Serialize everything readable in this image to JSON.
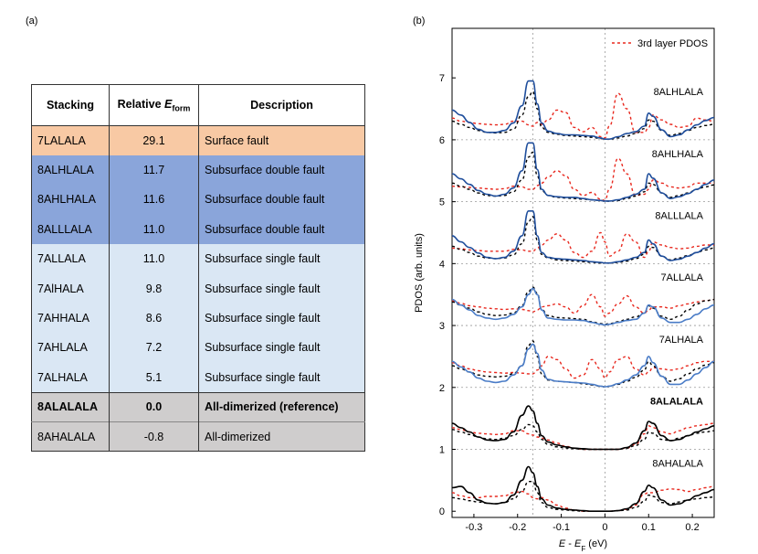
{
  "panel_a_label": "(a)",
  "panel_b_label": "(b)",
  "table": {
    "headers": {
      "stacking": "Stacking",
      "relative_prefix": "Relative ",
      "relative_italic": "E",
      "relative_sub": "form",
      "description": "Description"
    },
    "rows": [
      {
        "stacking": "7LALALA",
        "energy": "29.1",
        "description": "Surface fault",
        "color": "#f8c9a4",
        "bold": false
      },
      {
        "stacking": "8ALHLALA",
        "energy": "11.7",
        "description": "Subsurface double fault",
        "color": "#8aa5da",
        "bold": false
      },
      {
        "stacking": "8AHLHALA",
        "energy": "11.6",
        "description": "Subsurface double fault",
        "color": "#8aa5da",
        "bold": false
      },
      {
        "stacking": "8ALLLALA",
        "energy": "11.0",
        "description": "Subsurface double fault",
        "color": "#8aa5da",
        "bold": false
      },
      {
        "stacking": "7ALLALA",
        "energy": "11.0",
        "description": "Subsurface single fault",
        "color": "#dae7f4",
        "bold": false
      },
      {
        "stacking": "7AlHALA",
        "energy": "9.8",
        "description": "Subsurface single fault",
        "color": "#dae7f4",
        "bold": false
      },
      {
        "stacking": "7AHHALA",
        "energy": "8.6",
        "description": "Subsurface single fault",
        "color": "#dae7f4",
        "bold": false
      },
      {
        "stacking": "7AHLALA",
        "energy": "7.2",
        "description": "Subsurface single fault",
        "color": "#dae7f4",
        "bold": false
      },
      {
        "stacking": "7ALHALA",
        "energy": "5.1",
        "description": "Subsurface single fault",
        "color": "#dae7f4",
        "bold": false
      },
      {
        "stacking": "8ALALALA",
        "energy": "0.0",
        "description": "All-dimerized (reference)",
        "color": "#cfcdcd",
        "bold": true
      },
      {
        "stacking": "8AHALALA",
        "energy": "-0.8",
        "description": "All-dimerized",
        "color": "#cfcdcd",
        "bold": false
      }
    ]
  },
  "chart_data": {
    "type": "line",
    "xlabel_italic1": "E",
    "xlabel_mid": " - ",
    "xlabel_italic2": "E",
    "xlabel_sub": "F",
    "xlabel_unit": " (eV)",
    "ylabel": "PDOS (arb. units)",
    "xlim": [
      -0.35,
      0.25
    ],
    "ylim": [
      -0.1,
      7.8
    ],
    "xticks": [
      -0.3,
      -0.2,
      -0.1,
      0,
      0.1,
      0.2
    ],
    "xtick_labels": [
      "-0.3",
      "-0.2",
      "-0.1",
      "0",
      "0.1",
      "0.2"
    ],
    "yticks": [
      0,
      1,
      2,
      3,
      4,
      5,
      6,
      7
    ],
    "ytick_labels": [
      "0",
      "1",
      "2",
      "3",
      "4",
      "5",
      "6",
      "7"
    ],
    "vlines": [
      -0.165,
      0
    ],
    "hgrid": [
      1,
      2,
      3,
      4,
      5,
      6
    ],
    "legend": {
      "label": "3rd layer PDOS",
      "position": "top-right",
      "color": "#e8281e"
    },
    "colors": {
      "dark_blue": "#1f4e9c",
      "light_blue": "#4a7cc7",
      "black": "#000000",
      "red": "#e8281e"
    },
    "x": [
      -0.35,
      -0.33,
      -0.31,
      -0.29,
      -0.27,
      -0.25,
      -0.23,
      -0.21,
      -0.19,
      -0.175,
      -0.165,
      -0.155,
      -0.145,
      -0.13,
      -0.11,
      -0.09,
      -0.07,
      -0.05,
      -0.03,
      -0.01,
      0,
      0.01,
      0.03,
      0.05,
      0.07,
      0.09,
      0.1,
      0.11,
      0.13,
      0.15,
      0.17,
      0.19,
      0.21,
      0.23,
      0.25
    ],
    "curves": [
      {
        "label": "8ALHLALA",
        "offset": 6,
        "label_bold": false,
        "label_y": 6.78,
        "solid_color": "dark_blue",
        "solid": [
          0.48,
          0.4,
          0.28,
          0.17,
          0.12,
          0.12,
          0.15,
          0.27,
          0.55,
          0.95,
          0.95,
          0.58,
          0.27,
          0.14,
          0.1,
          0.08,
          0.08,
          0.07,
          0.06,
          0.03,
          0.01,
          0.01,
          0.05,
          0.1,
          0.13,
          0.22,
          0.43,
          0.38,
          0.16,
          0.05,
          0.08,
          0.16,
          0.24,
          0.31,
          0.36
        ],
        "black_dash": [
          0.3,
          0.25,
          0.2,
          0.15,
          0.12,
          0.11,
          0.12,
          0.17,
          0.4,
          0.7,
          0.78,
          0.5,
          0.2,
          0.12,
          0.09,
          0.07,
          0.06,
          0.05,
          0.04,
          0.02,
          0.01,
          0.01,
          0.03,
          0.06,
          0.1,
          0.18,
          0.32,
          0.3,
          0.15,
          0.07,
          0.1,
          0.15,
          0.2,
          0.23,
          0.25
        ],
        "red_dash": [
          0.35,
          0.3,
          0.28,
          0.26,
          0.25,
          0.24,
          0.25,
          0.3,
          0.3,
          0.24,
          0.22,
          0.28,
          0.25,
          0.32,
          0.48,
          0.44,
          0.2,
          0.13,
          0.2,
          0.05,
          0.03,
          0.22,
          0.75,
          0.5,
          0.12,
          0.12,
          0.2,
          0.4,
          0.32,
          0.25,
          0.2,
          0.22,
          0.35,
          0.32,
          0.3
        ]
      },
      {
        "label": "8AHLHALA",
        "offset": 5,
        "label_bold": false,
        "label_y": 5.78,
        "solid_color": "dark_blue",
        "solid": [
          0.45,
          0.37,
          0.28,
          0.18,
          0.12,
          0.09,
          0.12,
          0.22,
          0.5,
          0.95,
          0.95,
          0.52,
          0.2,
          0.1,
          0.08,
          0.07,
          0.07,
          0.05,
          0.03,
          0.02,
          0.01,
          0.01,
          0.03,
          0.07,
          0.12,
          0.2,
          0.45,
          0.38,
          0.14,
          0.05,
          0.08,
          0.13,
          0.2,
          0.28,
          0.35
        ],
        "black_dash": [
          0.3,
          0.25,
          0.2,
          0.14,
          0.1,
          0.09,
          0.1,
          0.16,
          0.35,
          0.72,
          0.8,
          0.42,
          0.18,
          0.1,
          0.07,
          0.06,
          0.05,
          0.04,
          0.03,
          0.02,
          0.01,
          0.01,
          0.02,
          0.05,
          0.09,
          0.16,
          0.3,
          0.28,
          0.14,
          0.07,
          0.1,
          0.14,
          0.2,
          0.24,
          0.27
        ],
        "red_dash": [
          0.25,
          0.24,
          0.23,
          0.22,
          0.21,
          0.2,
          0.21,
          0.25,
          0.24,
          0.2,
          0.2,
          0.26,
          0.3,
          0.4,
          0.5,
          0.42,
          0.2,
          0.1,
          0.15,
          0.04,
          0.02,
          0.2,
          0.7,
          0.45,
          0.1,
          0.12,
          0.2,
          0.35,
          0.3,
          0.24,
          0.22,
          0.24,
          0.3,
          0.3,
          0.3
        ]
      },
      {
        "label": "8ALLLALA",
        "offset": 4,
        "label_bold": false,
        "label_y": 4.78,
        "solid_color": "dark_blue",
        "solid": [
          0.45,
          0.35,
          0.26,
          0.17,
          0.1,
          0.08,
          0.1,
          0.2,
          0.45,
          0.85,
          0.85,
          0.45,
          0.18,
          0.1,
          0.08,
          0.07,
          0.06,
          0.05,
          0.03,
          0.02,
          0.01,
          0.01,
          0.03,
          0.06,
          0.1,
          0.18,
          0.38,
          0.32,
          0.12,
          0.05,
          0.07,
          0.12,
          0.18,
          0.25,
          0.32
        ],
        "black_dash": [
          0.28,
          0.23,
          0.18,
          0.12,
          0.09,
          0.08,
          0.09,
          0.14,
          0.32,
          0.68,
          0.76,
          0.38,
          0.15,
          0.09,
          0.06,
          0.05,
          0.04,
          0.03,
          0.02,
          0.01,
          0.01,
          0.01,
          0.02,
          0.04,
          0.08,
          0.15,
          0.28,
          0.26,
          0.12,
          0.06,
          0.09,
          0.13,
          0.18,
          0.22,
          0.25
        ],
        "red_dash": [
          0.25,
          0.24,
          0.22,
          0.21,
          0.2,
          0.2,
          0.2,
          0.23,
          0.22,
          0.2,
          0.2,
          0.25,
          0.3,
          0.38,
          0.48,
          0.38,
          0.18,
          0.1,
          0.2,
          0.5,
          0.35,
          0.12,
          0.2,
          0.48,
          0.35,
          0.1,
          0.2,
          0.35,
          0.3,
          0.26,
          0.24,
          0.25,
          0.28,
          0.3,
          0.3
        ]
      },
      {
        "label": "7ALLALA",
        "offset": 3,
        "label_bold": false,
        "label_y": 3.78,
        "solid_color": "light_blue",
        "solid": [
          0.42,
          0.33,
          0.25,
          0.16,
          0.12,
          0.1,
          0.12,
          0.18,
          0.3,
          0.5,
          0.6,
          0.5,
          0.25,
          0.12,
          0.1,
          0.09,
          0.09,
          0.08,
          0.05,
          0.02,
          0.01,
          0.02,
          0.05,
          0.08,
          0.1,
          0.2,
          0.33,
          0.3,
          0.12,
          0.05,
          0.05,
          0.1,
          0.18,
          0.27,
          0.33
        ],
        "black_dash": [
          0.38,
          0.33,
          0.28,
          0.22,
          0.18,
          0.16,
          0.17,
          0.2,
          0.32,
          0.55,
          0.62,
          0.52,
          0.26,
          0.16,
          0.13,
          0.12,
          0.11,
          0.1,
          0.06,
          0.03,
          0.02,
          0.03,
          0.06,
          0.1,
          0.14,
          0.2,
          0.32,
          0.28,
          0.15,
          0.1,
          0.15,
          0.25,
          0.35,
          0.4,
          0.42
        ],
        "red_dash": [
          0.4,
          0.36,
          0.32,
          0.3,
          0.28,
          0.27,
          0.26,
          0.27,
          0.26,
          0.24,
          0.22,
          0.25,
          0.3,
          0.32,
          0.35,
          0.3,
          0.2,
          0.32,
          0.5,
          0.3,
          0.15,
          0.2,
          0.35,
          0.48,
          0.3,
          0.2,
          0.25,
          0.3,
          0.3,
          0.28,
          0.32,
          0.35,
          0.38,
          0.4,
          0.42
        ]
      },
      {
        "label": "7ALHALA",
        "offset": 2,
        "label_bold": false,
        "label_y": 2.78,
        "solid_color": "light_blue",
        "solid": [
          0.42,
          0.33,
          0.25,
          0.15,
          0.1,
          0.08,
          0.1,
          0.2,
          0.35,
          0.62,
          0.7,
          0.55,
          0.28,
          0.13,
          0.1,
          0.09,
          0.08,
          0.07,
          0.05,
          0.02,
          0.01,
          0.02,
          0.06,
          0.12,
          0.2,
          0.35,
          0.5,
          0.4,
          0.18,
          0.05,
          0.05,
          0.12,
          0.22,
          0.32,
          0.42
        ],
        "black_dash": [
          0.35,
          0.3,
          0.25,
          0.2,
          0.18,
          0.17,
          0.18,
          0.22,
          0.35,
          0.68,
          0.75,
          0.5,
          0.22,
          0.12,
          0.1,
          0.09,
          0.08,
          0.06,
          0.04,
          0.02,
          0.01,
          0.02,
          0.05,
          0.1,
          0.16,
          0.28,
          0.42,
          0.35,
          0.18,
          0.1,
          0.14,
          0.22,
          0.3,
          0.36,
          0.4
        ],
        "red_dash": [
          0.4,
          0.35,
          0.3,
          0.27,
          0.25,
          0.24,
          0.23,
          0.24,
          0.23,
          0.22,
          0.22,
          0.28,
          0.35,
          0.5,
          0.45,
          0.3,
          0.15,
          0.2,
          0.45,
          0.3,
          0.15,
          0.25,
          0.45,
          0.5,
          0.3,
          0.2,
          0.25,
          0.32,
          0.3,
          0.28,
          0.3,
          0.35,
          0.4,
          0.42,
          0.42
        ]
      },
      {
        "label": "8ALALALA",
        "offset": 1,
        "label_bold": true,
        "label_y": 1.78,
        "solid_color": "black",
        "solid": [
          0.42,
          0.35,
          0.28,
          0.2,
          0.15,
          0.14,
          0.16,
          0.28,
          0.55,
          0.7,
          0.62,
          0.42,
          0.22,
          0.12,
          0.07,
          0.04,
          0.02,
          0.01,
          0.0,
          0.0,
          0.0,
          0.0,
          0.0,
          0.03,
          0.1,
          0.3,
          0.45,
          0.42,
          0.22,
          0.14,
          0.16,
          0.22,
          0.28,
          0.33,
          0.38
        ],
        "black_dash": [
          0.32,
          0.28,
          0.24,
          0.2,
          0.17,
          0.16,
          0.18,
          0.22,
          0.32,
          0.4,
          0.38,
          0.28,
          0.16,
          0.08,
          0.04,
          0.02,
          0.01,
          0.0,
          0.0,
          0.0,
          0.0,
          0.0,
          0.0,
          0.02,
          0.06,
          0.16,
          0.28,
          0.26,
          0.16,
          0.14,
          0.18,
          0.22,
          0.26,
          0.28,
          0.3
        ],
        "red_dash": [
          0.35,
          0.32,
          0.28,
          0.26,
          0.25,
          0.24,
          0.25,
          0.3,
          0.3,
          0.25,
          0.23,
          0.2,
          0.18,
          0.15,
          0.1,
          0.05,
          0.02,
          0.0,
          0.0,
          0.0,
          0.0,
          0.0,
          0.0,
          0.02,
          0.08,
          0.25,
          0.38,
          0.35,
          0.28,
          0.25,
          0.3,
          0.35,
          0.38,
          0.4,
          0.42
        ]
      },
      {
        "label": "8AHALALA",
        "offset": 0,
        "label_bold": false,
        "label_y": 0.78,
        "solid_color": "black",
        "solid": [
          0.38,
          0.4,
          0.3,
          0.18,
          0.13,
          0.12,
          0.14,
          0.26,
          0.5,
          0.72,
          0.62,
          0.4,
          0.2,
          0.1,
          0.05,
          0.03,
          0.02,
          0.01,
          0.0,
          0.0,
          0.0,
          0.0,
          0.01,
          0.04,
          0.12,
          0.32,
          0.42,
          0.38,
          0.18,
          0.1,
          0.12,
          0.18,
          0.25,
          0.3,
          0.35
        ],
        "black_dash": [
          0.22,
          0.2,
          0.17,
          0.15,
          0.13,
          0.12,
          0.14,
          0.2,
          0.32,
          0.48,
          0.48,
          0.3,
          0.14,
          0.06,
          0.03,
          0.02,
          0.01,
          0.0,
          0.0,
          0.0,
          0.0,
          0.0,
          0.01,
          0.02,
          0.06,
          0.16,
          0.26,
          0.24,
          0.14,
          0.12,
          0.15,
          0.18,
          0.2,
          0.22,
          0.23
        ],
        "red_dash": [
          0.3,
          0.25,
          0.22,
          0.22,
          0.24,
          0.24,
          0.25,
          0.3,
          0.32,
          0.28,
          0.22,
          0.2,
          0.22,
          0.18,
          0.1,
          0.05,
          0.02,
          0.0,
          0.0,
          0.0,
          0.0,
          0.0,
          0.01,
          0.03,
          0.1,
          0.28,
          0.3,
          0.3,
          0.34,
          0.36,
          0.35,
          0.32,
          0.35,
          0.38,
          0.4
        ]
      }
    ]
  }
}
